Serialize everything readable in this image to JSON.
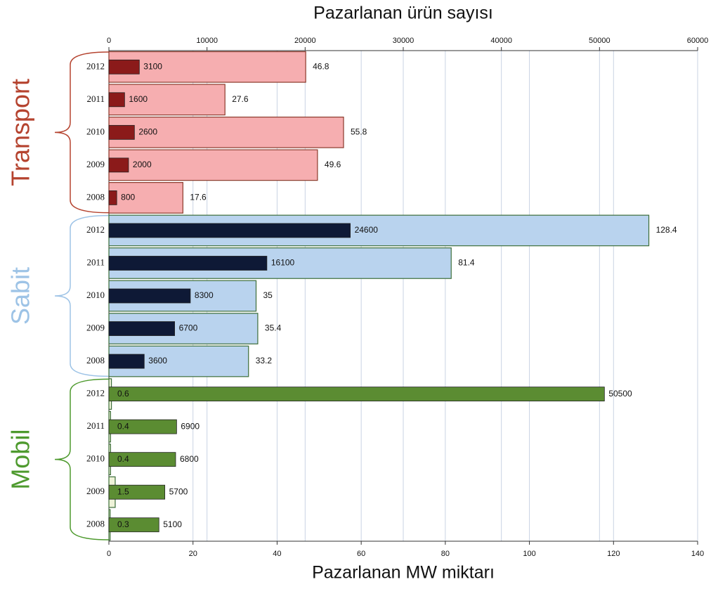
{
  "chart_data": {
    "type": "bar",
    "orientation": "horizontal",
    "xlabel": "Pazarlanan MW miktarı",
    "x2label": "Pazarlanan ürün sayısı",
    "xlim": [
      0,
      140
    ],
    "xticks": [
      0,
      20,
      40,
      60,
      80,
      100,
      120,
      140
    ],
    "x2lim": [
      0,
      60000
    ],
    "x2ticks": [
      0,
      10000,
      20000,
      30000,
      40000,
      50000,
      60000
    ],
    "grid": true,
    "groups": [
      {
        "name": "Transport",
        "color": "#b5432f",
        "categories": [
          "2012",
          "2011",
          "2010",
          "2009",
          "2008"
        ],
        "series": [
          {
            "axis": "x",
            "color": "#f6aeb0",
            "edge": "#8b3a2c",
            "values": [
              46.8,
              27.6,
              55.8,
              49.6,
              17.6
            ]
          },
          {
            "axis": "x2",
            "color": "#8b1a1a",
            "values": [
              3100,
              1600,
              2600,
              2000,
              800
            ]
          }
        ]
      },
      {
        "name": "Sabit",
        "color": "#9dc3e6",
        "categories": [
          "2012",
          "2011",
          "2010",
          "2009",
          "2008"
        ],
        "series": [
          {
            "axis": "x",
            "color": "#b9d3ee",
            "edge": "#3d6e3a",
            "values": [
              128.4,
              81.4,
              35,
              35.4,
              33.2
            ]
          },
          {
            "axis": "x2",
            "color": "#0e1936",
            "values": [
              24600,
              16100,
              8300,
              6700,
              3600
            ]
          }
        ]
      },
      {
        "name": "Mobil",
        "color": "#4e9a2e",
        "categories": [
          "2012",
          "2011",
          "2010",
          "2009",
          "2008"
        ],
        "series": [
          {
            "axis": "x",
            "color": "#eef3d8",
            "edge": "#3d6e3a",
            "values": [
              0.6,
              0.4,
              0.4,
              1.5,
              0.3
            ]
          },
          {
            "axis": "x2",
            "color": "#5b8c32",
            "values": [
              50500,
              6900,
              6800,
              5700,
              5100
            ]
          }
        ]
      }
    ]
  }
}
